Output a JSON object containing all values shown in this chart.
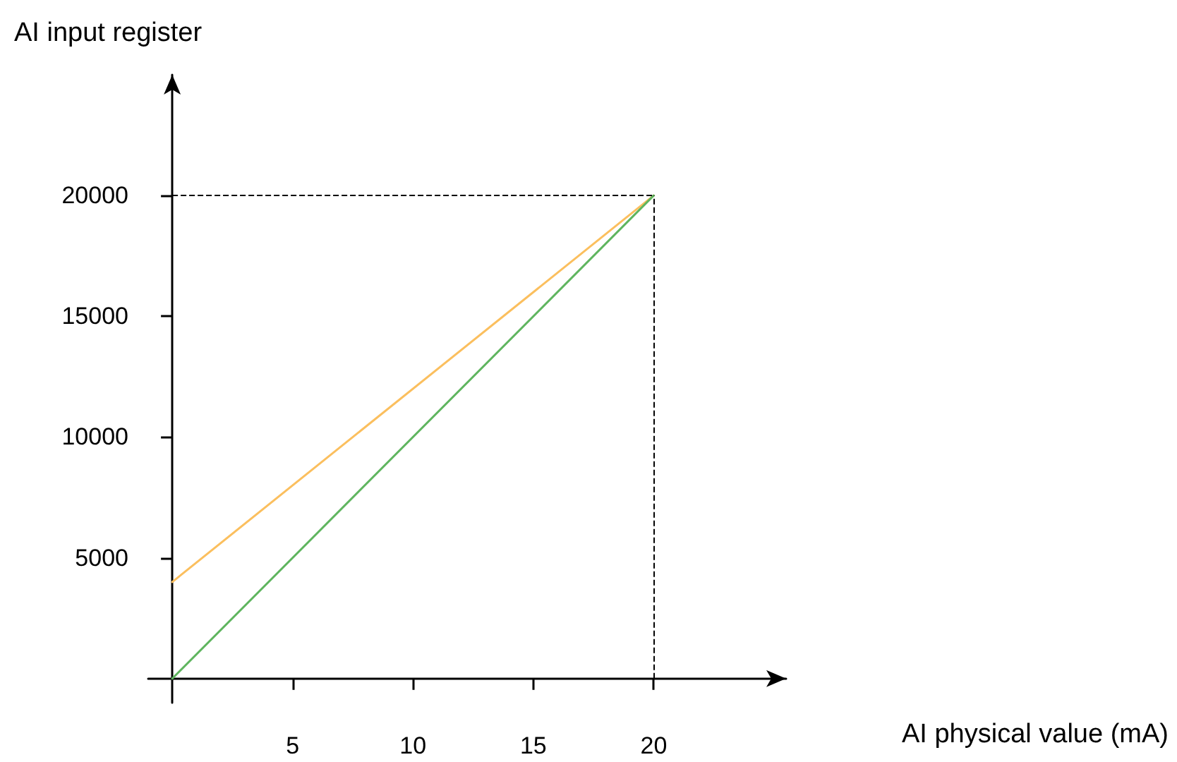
{
  "chart_data": {
    "type": "line",
    "xlabel": "AI physical value (mA)",
    "ylabel": "AI input register",
    "x": [
      0,
      20
    ],
    "series": [
      {
        "color": "#fbbf5e",
        "values": [
          4000,
          20000
        ]
      },
      {
        "color": "#5fb55f",
        "values": [
          0,
          20000
        ]
      }
    ],
    "xlim": [
      -1,
      25.5
    ],
    "ylim": [
      -1000,
      25000
    ],
    "xticks": [
      5,
      10,
      15,
      20
    ],
    "yticks": [
      5000,
      10000,
      15000,
      20000
    ],
    "ref_lines": [
      {
        "axis": "x",
        "value": 20,
        "line_style": "dashed",
        "color": "#000000"
      },
      {
        "axis": "y",
        "value": 20000,
        "line_style": "dashed",
        "color": "#000000"
      }
    ],
    "marker": "none",
    "line_style": "solid"
  }
}
